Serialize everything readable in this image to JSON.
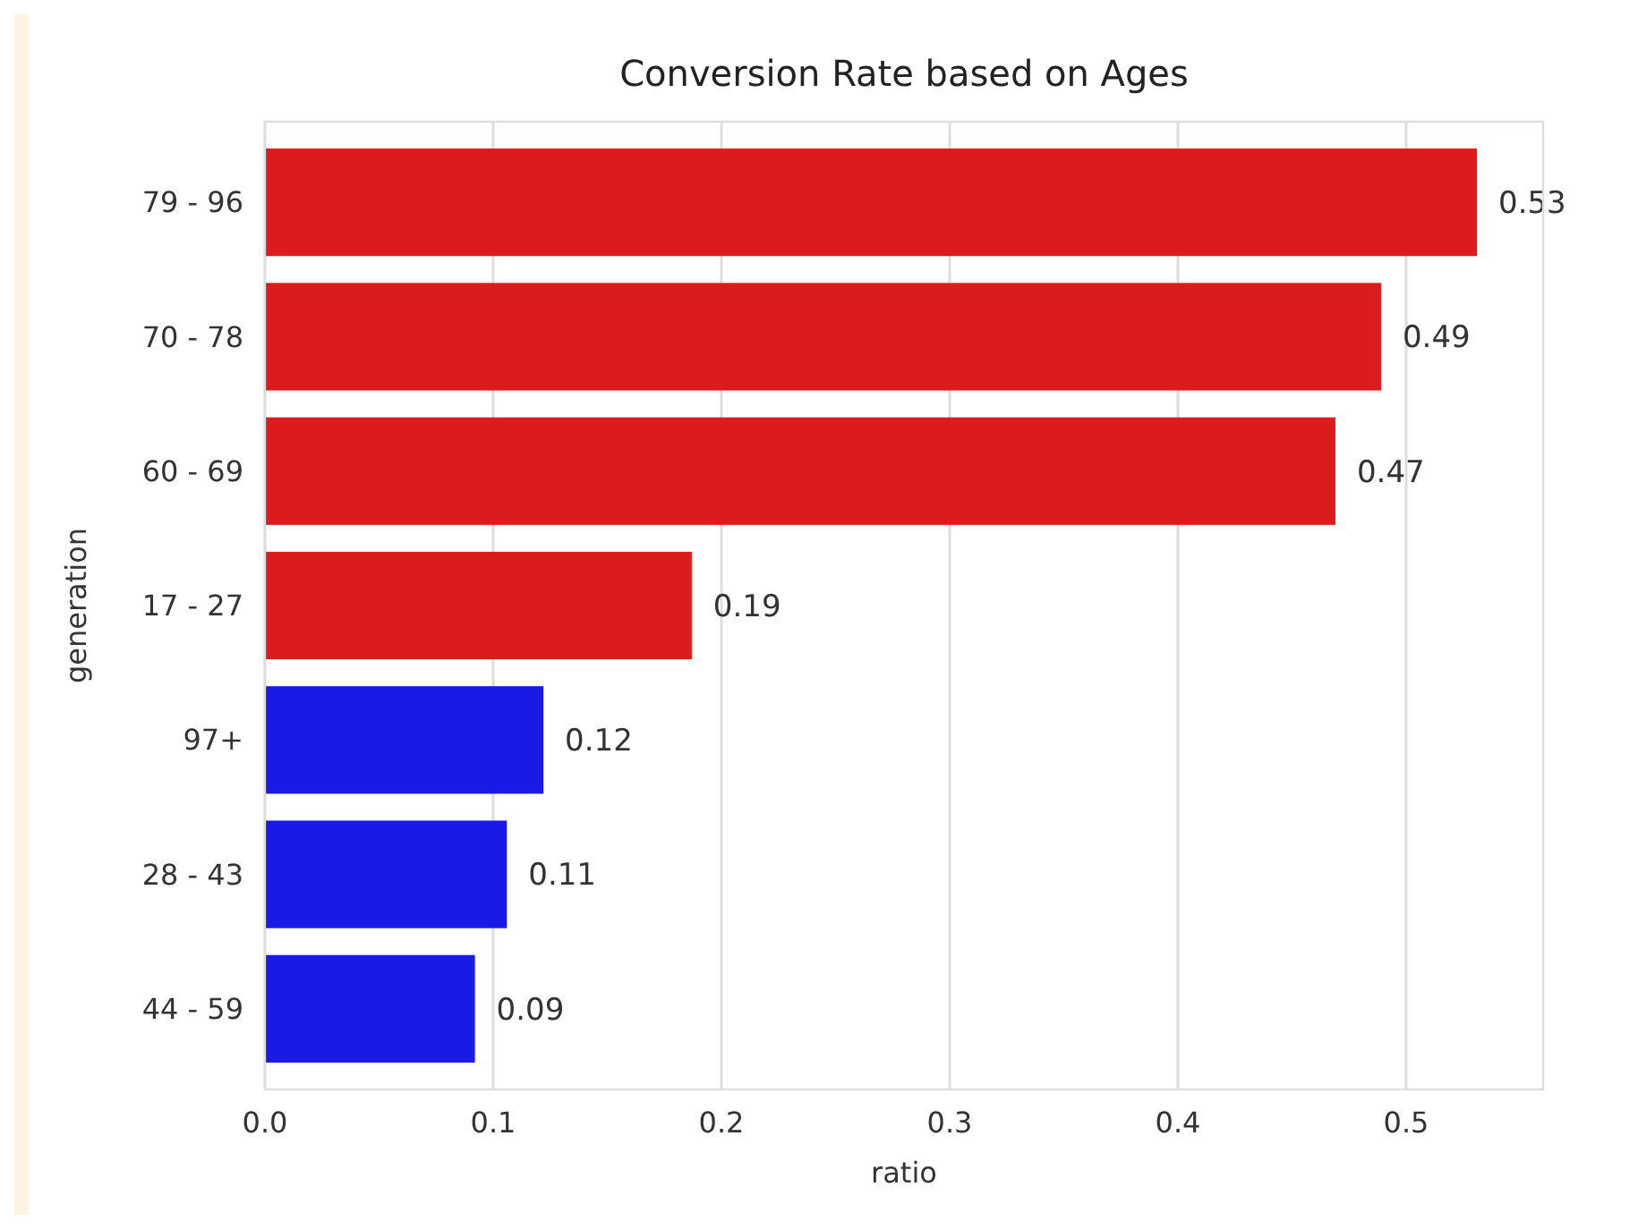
{
  "chart_data": {
    "type": "bar",
    "orientation": "horizontal",
    "title": "Conversion Rate based on Ages",
    "xlabel": "ratio",
    "ylabel": "generation",
    "categories": [
      "79 - 96",
      "70 - 78",
      "60 - 69",
      "17 - 27",
      "97+",
      "28 - 43",
      "44 - 59"
    ],
    "values": [
      0.531,
      0.489,
      0.469,
      0.187,
      0.122,
      0.106,
      0.092
    ],
    "colors": [
      "#dc1c1c",
      "#dc1c1c",
      "#dc1c1c",
      "#dc1c1c",
      "#1a1ae6",
      "#1a1ae6",
      "#1a1ae6"
    ],
    "value_labels": [
      "0.53",
      "0.49",
      "0.47",
      "0.19",
      "0.12",
      "0.11",
      "0.09"
    ],
    "xlim": [
      0,
      0.56
    ],
    "xticks": [
      {
        "value": 0,
        "label": "0.0"
      },
      0.1,
      0.2,
      0.3,
      0.4,
      0.5
    ],
    "grid": "x"
  }
}
